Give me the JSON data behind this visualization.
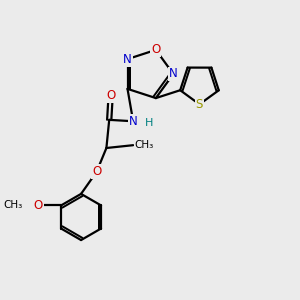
{
  "bg_color": "#ebebeb",
  "atom_colors": {
    "C": "#000000",
    "N": "#0000cc",
    "O": "#cc0000",
    "S": "#999900",
    "H": "#008080"
  },
  "bond_color": "#000000",
  "line_width": 1.6,
  "fig_width": 3.0,
  "fig_height": 3.0,
  "dpi": 100
}
